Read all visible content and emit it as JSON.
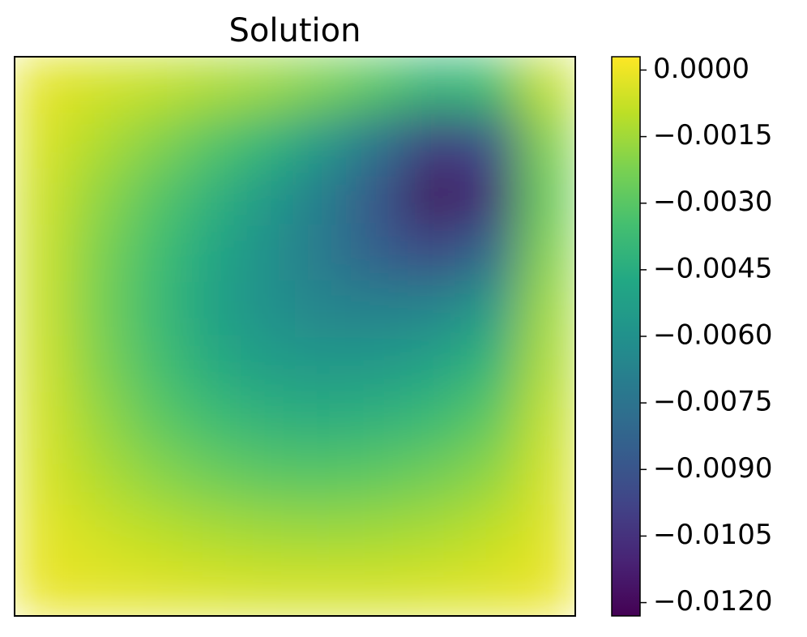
{
  "chart_data": {
    "type": "contourf",
    "title": "Solution",
    "colormap": "viridis",
    "z": [
      [
        -0.0002,
        -0.0005,
        -0.0008,
        -0.0012,
        -0.0016,
        -0.0022,
        -0.003,
        -0.004,
        -0.0035,
        -0.0008
      ],
      [
        -0.0004,
        -0.0012,
        -0.002,
        -0.003,
        -0.004,
        -0.0055,
        -0.0075,
        -0.01,
        -0.009,
        -0.002
      ],
      [
        -0.0006,
        -0.0018,
        -0.003,
        -0.0042,
        -0.0055,
        -0.007,
        -0.009,
        -0.012,
        -0.0105,
        -0.0025
      ],
      [
        -0.0007,
        -0.0022,
        -0.0035,
        -0.0048,
        -0.006,
        -0.0072,
        -0.0085,
        -0.0095,
        -0.008,
        -0.002
      ],
      [
        -0.0007,
        -0.0023,
        -0.0037,
        -0.005,
        -0.006,
        -0.0066,
        -0.0068,
        -0.0066,
        -0.0055,
        -0.0015
      ],
      [
        -0.0006,
        -0.0021,
        -0.0034,
        -0.0045,
        -0.0053,
        -0.0056,
        -0.0055,
        -0.005,
        -0.004,
        -0.0012
      ],
      [
        -0.0005,
        -0.0017,
        -0.0028,
        -0.0036,
        -0.0042,
        -0.0044,
        -0.0042,
        -0.0037,
        -0.0028,
        -0.0008
      ],
      [
        -0.0004,
        -0.0012,
        -0.0019,
        -0.0025,
        -0.0029,
        -0.003,
        -0.0028,
        -0.0024,
        -0.0018,
        -0.0005
      ],
      [
        -0.0002,
        -0.0006,
        -0.001,
        -0.0013,
        -0.0015,
        -0.0016,
        -0.0015,
        -0.0013,
        -0.0009,
        -0.0003
      ],
      [
        -0.0001,
        -0.0002,
        -0.0003,
        -0.0004,
        -0.0005,
        -0.0005,
        -0.0005,
        -0.0004,
        -0.0003,
        -0.0001
      ]
    ],
    "zlim": [
      -0.0123,
      0.0003
    ],
    "zticks": [
      {
        "value": 0,
        "label": "0.0000"
      },
      {
        "value": -0.0015,
        "label": "−0.0015"
      },
      {
        "value": -0.003,
        "label": "−0.0030"
      },
      {
        "value": -0.0045,
        "label": "−0.0045"
      },
      {
        "value": -0.006,
        "label": "−0.0060"
      },
      {
        "value": -0.0075,
        "label": "−0.0075"
      },
      {
        "value": -0.009,
        "label": "−0.0090"
      },
      {
        "value": -0.0105,
        "label": "−0.0105"
      },
      {
        "value": -0.012,
        "label": "−0.0120"
      }
    ]
  }
}
